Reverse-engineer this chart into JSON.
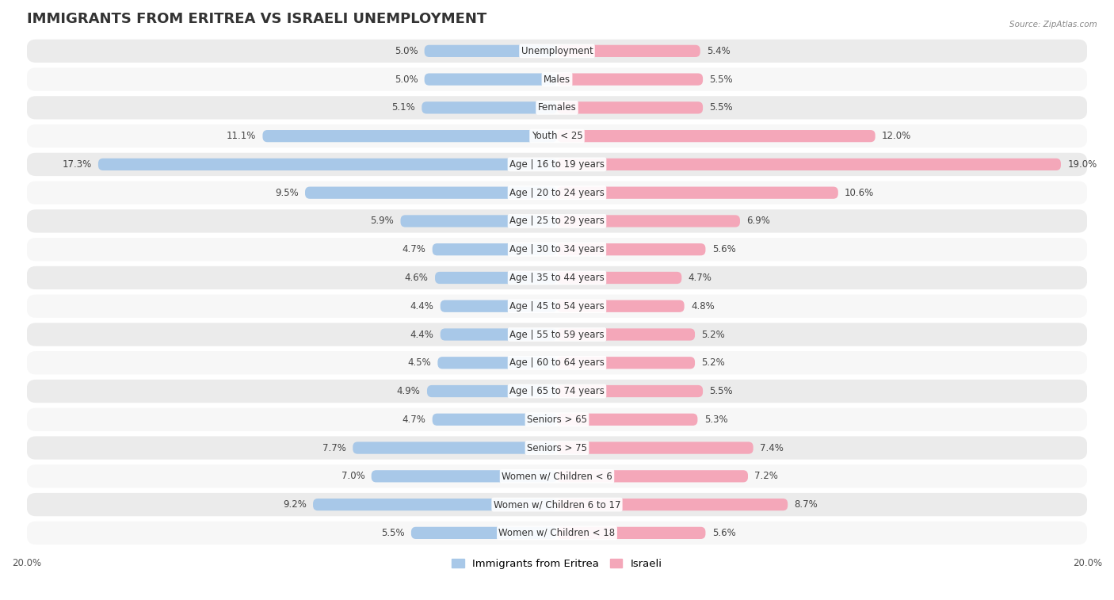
{
  "title": "IMMIGRANTS FROM ERITREA VS ISRAELI UNEMPLOYMENT",
  "source": "Source: ZipAtlas.com",
  "categories": [
    "Unemployment",
    "Males",
    "Females",
    "Youth < 25",
    "Age | 16 to 19 years",
    "Age | 20 to 24 years",
    "Age | 25 to 29 years",
    "Age | 30 to 34 years",
    "Age | 35 to 44 years",
    "Age | 45 to 54 years",
    "Age | 55 to 59 years",
    "Age | 60 to 64 years",
    "Age | 65 to 74 years",
    "Seniors > 65",
    "Seniors > 75",
    "Women w/ Children < 6",
    "Women w/ Children 6 to 17",
    "Women w/ Children < 18"
  ],
  "left_values": [
    5.0,
    5.0,
    5.1,
    11.1,
    17.3,
    9.5,
    5.9,
    4.7,
    4.6,
    4.4,
    4.4,
    4.5,
    4.9,
    4.7,
    7.7,
    7.0,
    9.2,
    5.5
  ],
  "right_values": [
    5.4,
    5.5,
    5.5,
    12.0,
    19.0,
    10.6,
    6.9,
    5.6,
    4.7,
    4.8,
    5.2,
    5.2,
    5.5,
    5.3,
    7.4,
    7.2,
    8.7,
    5.6
  ],
  "left_color": "#a8c8e8",
  "right_color": "#f4a7b9",
  "left_label": "Immigrants from Eritrea",
  "right_label": "Israeli",
  "axis_max": 20.0,
  "row_color_even": "#ebebeb",
  "row_color_odd": "#f7f7f7",
  "bar_bg_color": "#ffffff",
  "title_fontsize": 13,
  "cat_fontsize": 8.5,
  "value_fontsize": 8.5,
  "legend_fontsize": 9.5,
  "tick_fontsize": 8.5
}
